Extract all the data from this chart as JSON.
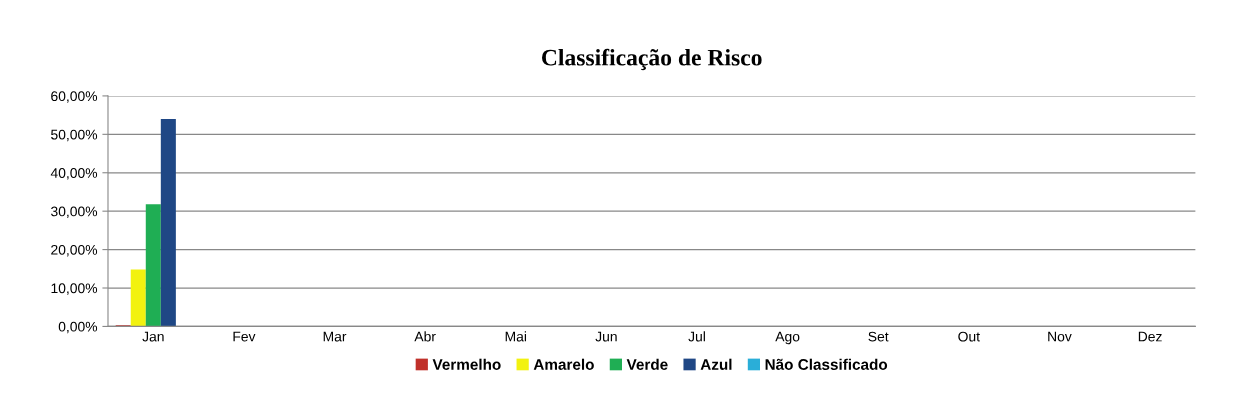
{
  "chart_data": {
    "type": "bar",
    "title": "Classificação de Risco",
    "categories": [
      "Jan",
      "Fev",
      "Mar",
      "Abr",
      "Mai",
      "Jun",
      "Jul",
      "Ago",
      "Set",
      "Out",
      "Nov",
      "Dez"
    ],
    "series": [
      {
        "name": "Vermelho",
        "color": "#c0302a",
        "values": [
          0.3,
          null,
          null,
          null,
          null,
          null,
          null,
          null,
          null,
          null,
          null,
          null
        ]
      },
      {
        "name": "Amarelo",
        "color": "#f2f20f",
        "values": [
          14.8,
          null,
          null,
          null,
          null,
          null,
          null,
          null,
          null,
          null,
          null,
          null
        ]
      },
      {
        "name": "Verde",
        "color": "#1fae54",
        "values": [
          31.8,
          null,
          null,
          null,
          null,
          null,
          null,
          null,
          null,
          null,
          null,
          null
        ]
      },
      {
        "name": "Azul",
        "color": "#1f4785",
        "values": [
          54,
          null,
          null,
          null,
          null,
          null,
          null,
          null,
          null,
          null,
          null,
          null
        ]
      },
      {
        "name": "Não Classificado",
        "color": "#2aaed8",
        "values": [
          null,
          null,
          null,
          null,
          null,
          null,
          null,
          null,
          null,
          null,
          null,
          null
        ]
      }
    ],
    "ylim": [
      0,
      60
    ],
    "yticks": [
      {
        "value": 0,
        "label": "0,00%"
      },
      {
        "value": 10,
        "label": "10,00%"
      },
      {
        "value": 20,
        "label": "20,00%"
      },
      {
        "value": 30,
        "label": "30,00%"
      },
      {
        "value": 40,
        "label": "40,00%"
      },
      {
        "value": 50,
        "label": "50,00%"
      },
      {
        "value": 60,
        "label": "60,00%"
      }
    ],
    "grid": "y",
    "legend": "bottom"
  }
}
